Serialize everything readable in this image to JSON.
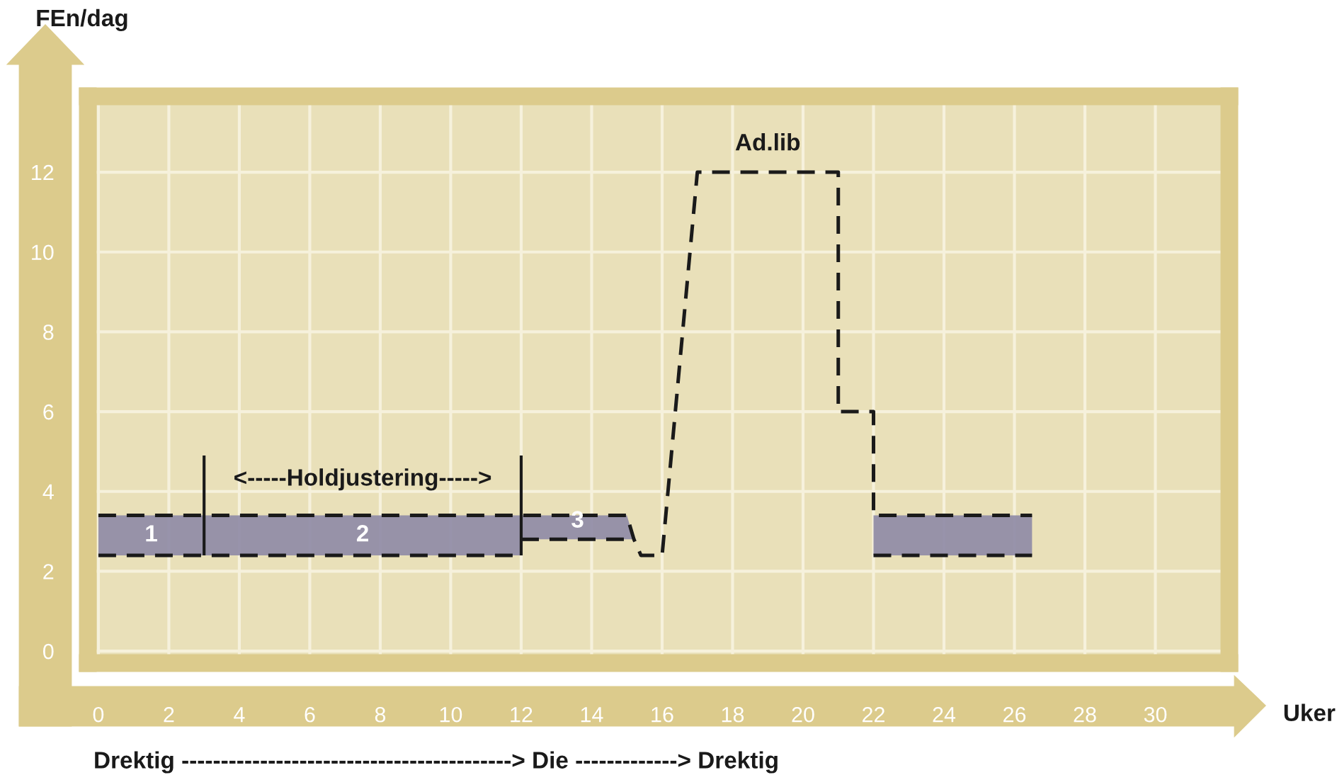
{
  "chart_data": {
    "type": "line",
    "xlabel": "Uker",
    "ylabel": "FEn/dag",
    "xlim": [
      -0.3,
      32.1
    ],
    "ylim": [
      -0.3,
      13.9
    ],
    "xticks": [
      0,
      2,
      4,
      6,
      8,
      10,
      12,
      14,
      16,
      18,
      20,
      22,
      24,
      26,
      28,
      30
    ],
    "yticks": [
      0,
      2,
      4,
      6,
      8,
      10,
      12
    ],
    "grid": true,
    "line_style": "dashed",
    "marker": "none",
    "series": [
      {
        "type": "line",
        "color": "#1a1a1a",
        "x": [
          0,
          12,
          12,
          15,
          15.2,
          15.4,
          16,
          17,
          21,
          21,
          22,
          22,
          26.5
        ],
        "values": [
          3.4,
          3.4,
          3.4,
          3.4,
          2.8,
          2.4,
          2.4,
          12,
          12,
          6,
          6,
          3.4,
          3.4
        ],
        "lower": [
          2.4,
          2.4,
          2.8,
          2.8,
          2.8,
          null,
          null,
          null,
          null,
          null,
          null,
          2.4,
          2.4
        ],
        "upper": [
          3.4,
          3.4,
          3.4,
          3.4,
          2.8,
          null,
          null,
          null,
          null,
          null,
          null,
          3.4,
          3.4
        ]
      },
      {
        "color": "#1a1a1a",
        "x": [
          0,
          12
        ],
        "values": [
          2.4,
          2.4
        ]
      },
      {
        "color": "#1a1a1a",
        "x": [
          12,
          15.2
        ],
        "values": [
          2.8,
          2.8
        ]
      },
      {
        "color": "#1a1a1a",
        "x": [
          22,
          26.5
        ],
        "values": [
          2.4,
          2.4
        ]
      }
    ],
    "ref_lines": [
      {
        "axis": "x",
        "value": 3,
        "color": "#1a1a1a"
      },
      {
        "axis": "x",
        "value": 12,
        "color": "#1a1a1a"
      }
    ],
    "annotations": [
      "1",
      "2",
      "3",
      "<-----Holdjustering----->",
      "Ad.lib",
      "Drektig ------------------------------------------> Die -------------> Drektig"
    ]
  }
}
